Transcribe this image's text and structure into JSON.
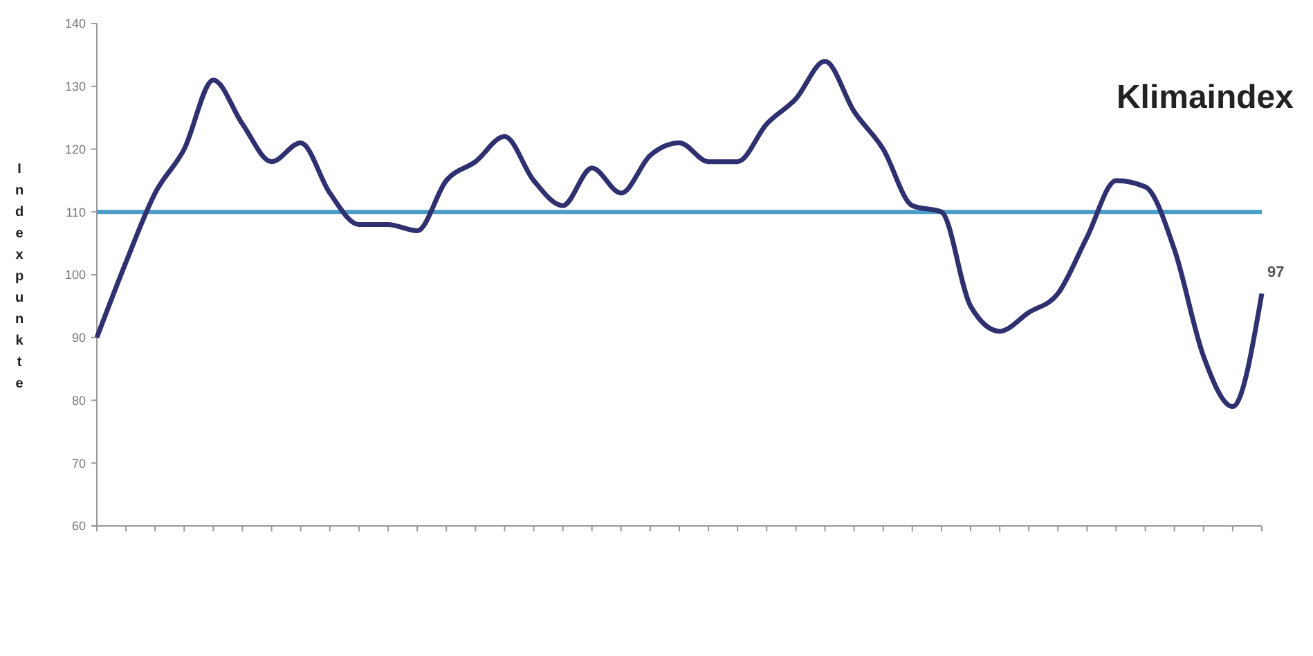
{
  "chart_data": {
    "type": "line",
    "title": "Klimaindex",
    "ylabel": "Indexpunkte",
    "categories": [
      null,
      null,
      null,
      null,
      null,
      null,
      null,
      null,
      null,
      null,
      null,
      null,
      null,
      null,
      null,
      null,
      null,
      null,
      null,
      null,
      null,
      null,
      null,
      null,
      null,
      null,
      null,
      null,
      null,
      null,
      null,
      null,
      null,
      null,
      null,
      null,
      null,
      null,
      null,
      null,
      null
    ],
    "series": [
      {
        "color": "#2e3070",
        "values": [
          90,
          102,
          113,
          120,
          131,
          124,
          118,
          121,
          113,
          108,
          108,
          107,
          115,
          118,
          122,
          115,
          111,
          117,
          113,
          119,
          121,
          118,
          118,
          124,
          128,
          134,
          126,
          120,
          111,
          110,
          95,
          91,
          94,
          97,
          106,
          115,
          114,
          104,
          87,
          79,
          97
        ],
        "value_labels": [
          null,
          null,
          null,
          null,
          null,
          null,
          null,
          null,
          null,
          null,
          null,
          null,
          null,
          null,
          null,
          null,
          null,
          null,
          null,
          null,
          null,
          null,
          null,
          null,
          null,
          null,
          null,
          null,
          null,
          null,
          null,
          null,
          null,
          null,
          null,
          null,
          null,
          null,
          null,
          null,
          "97"
        ]
      }
    ],
    "ylim": [
      60,
      140
    ],
    "yticks": [
      60,
      70,
      80,
      90,
      100,
      110,
      120,
      130,
      140
    ],
    "ref_lines": [
      {
        "axis": "y",
        "value": 110,
        "color": "#4a9cc8"
      }
    ],
    "grid": false,
    "line_style": "solid",
    "marker": "none"
  }
}
